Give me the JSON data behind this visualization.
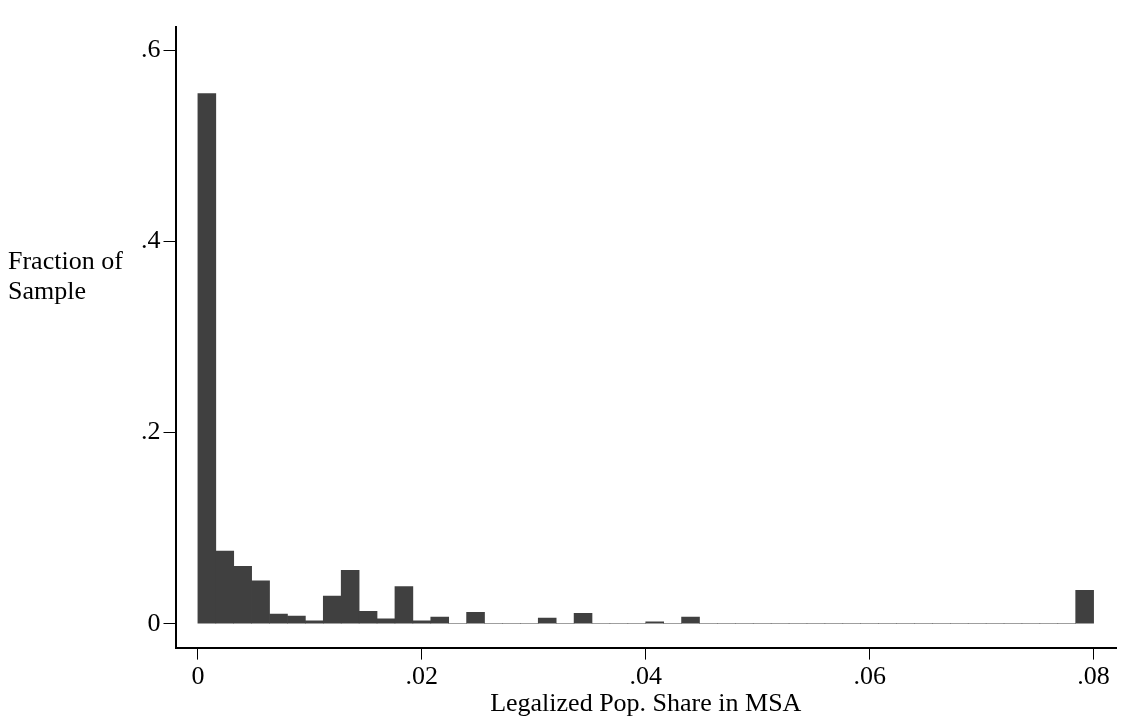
{
  "chart_data": {
    "type": "histogram",
    "xlabel": "Legalized Pop. Share in MSA",
    "ylabel": "Fraction of\nSample",
    "bins": [
      0,
      0.0016,
      0.0032,
      0.0048,
      0.0064,
      0.008,
      0.0096,
      0.0112,
      0.0128,
      0.0144,
      0.016,
      0.0176,
      0.0192,
      0.0208,
      0.0224,
      0.024,
      0.0256,
      0.0272,
      0.0288,
      0.0304,
      0.032,
      0.0336,
      0.0352,
      0.0368,
      0.0384,
      0.04,
      0.0416,
      0.0432,
      0.0448,
      0.0464,
      0.048,
      0.0496,
      0.0512,
      0.0528,
      0.0544,
      0.056,
      0.0576,
      0.0592,
      0.0608,
      0.0624,
      0.064,
      0.0656,
      0.0672,
      0.0688,
      0.0704,
      0.072,
      0.0736,
      0.0752,
      0.0768,
      0.0784,
      0.08
    ],
    "values": [
      0.555,
      0.076,
      0.06,
      0.045,
      0.01,
      0.008,
      0.003,
      0.029,
      0.056,
      0.013,
      0.005,
      0.039,
      0.003,
      0.007,
      0,
      0.012,
      0,
      0,
      0,
      0.006,
      0,
      0.011,
      0,
      0,
      0,
      0.002,
      0,
      0.007,
      0,
      0,
      0,
      0,
      0,
      0,
      0,
      0,
      0,
      0,
      0,
      0,
      0,
      0,
      0,
      0,
      0,
      0,
      0,
      0,
      0,
      0.035
    ],
    "color": "#404040",
    "xlim": [
      -0.002,
      0.082
    ],
    "xticks": [
      0,
      {
        "value": 0.02,
        "label": ".02"
      },
      {
        "value": 0.04,
        "label": ".04"
      },
      {
        "value": 0.06,
        "label": ".06"
      },
      {
        "value": 0.08,
        "label": ".08"
      }
    ],
    "ylim": [
      -0.025,
      0.625
    ],
    "yticks": [
      0,
      {
        "value": 0.2,
        "label": ".2"
      },
      {
        "value": 0.4,
        "label": ".4"
      },
      {
        "value": 0.6,
        "label": ".6"
      }
    ],
    "grid": false,
    "legend": false
  }
}
